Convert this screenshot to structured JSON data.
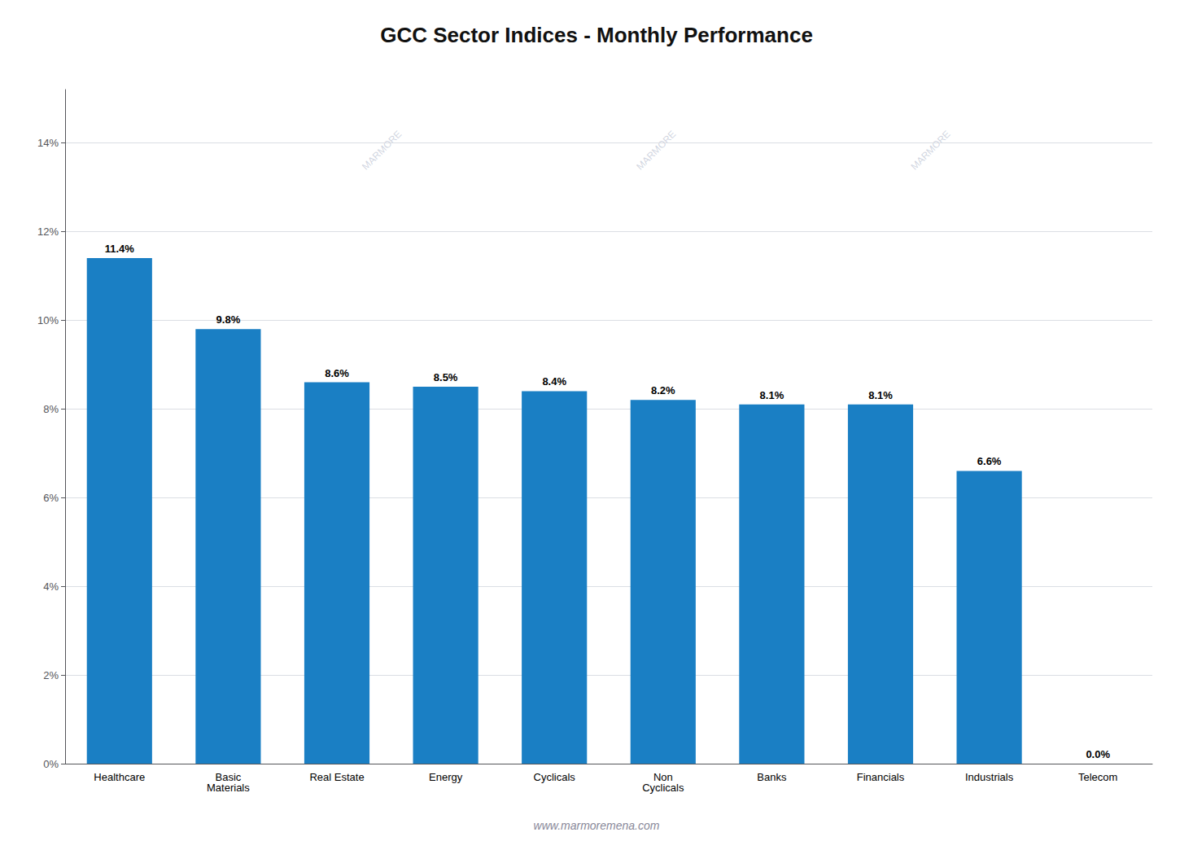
{
  "chart_data": {
    "type": "bar",
    "title": "GCC Sector Indices - Monthly Performance",
    "categories": [
      "Healthcare",
      "Basic\nMaterials",
      "Real Estate",
      "Energy",
      "Cyclicals",
      "Non\nCyclicals",
      "Banks",
      "Financials",
      "Industrials",
      "Telecom"
    ],
    "values": [
      11.4,
      9.8,
      8.6,
      8.5,
      8.4,
      8.2,
      8.1,
      8.1,
      6.6,
      0.0
    ],
    "value_labels": [
      "11.4%",
      "9.8%",
      "8.6%",
      "8.5%",
      "8.4%",
      "8.2%",
      "8.1%",
      "8.1%",
      "6.6%",
      "0.0%"
    ],
    "color": "#1a7fc4",
    "data_labels": true,
    "ylim": [
      0,
      15.2
    ],
    "yticks": [
      {
        "value": 0,
        "label": "0%"
      },
      {
        "value": 2,
        "label": "2%"
      },
      {
        "value": 4,
        "label": "4%"
      },
      {
        "value": 6,
        "label": "6%"
      },
      {
        "value": 8,
        "label": "8%"
      },
      {
        "value": 10,
        "label": "10%"
      },
      {
        "value": 12,
        "label": "12%"
      },
      {
        "value": 14,
        "label": "14%"
      }
    ],
    "grid": true,
    "annotations": [
      "MARMORE",
      "www.marmoremena.com"
    ]
  }
}
